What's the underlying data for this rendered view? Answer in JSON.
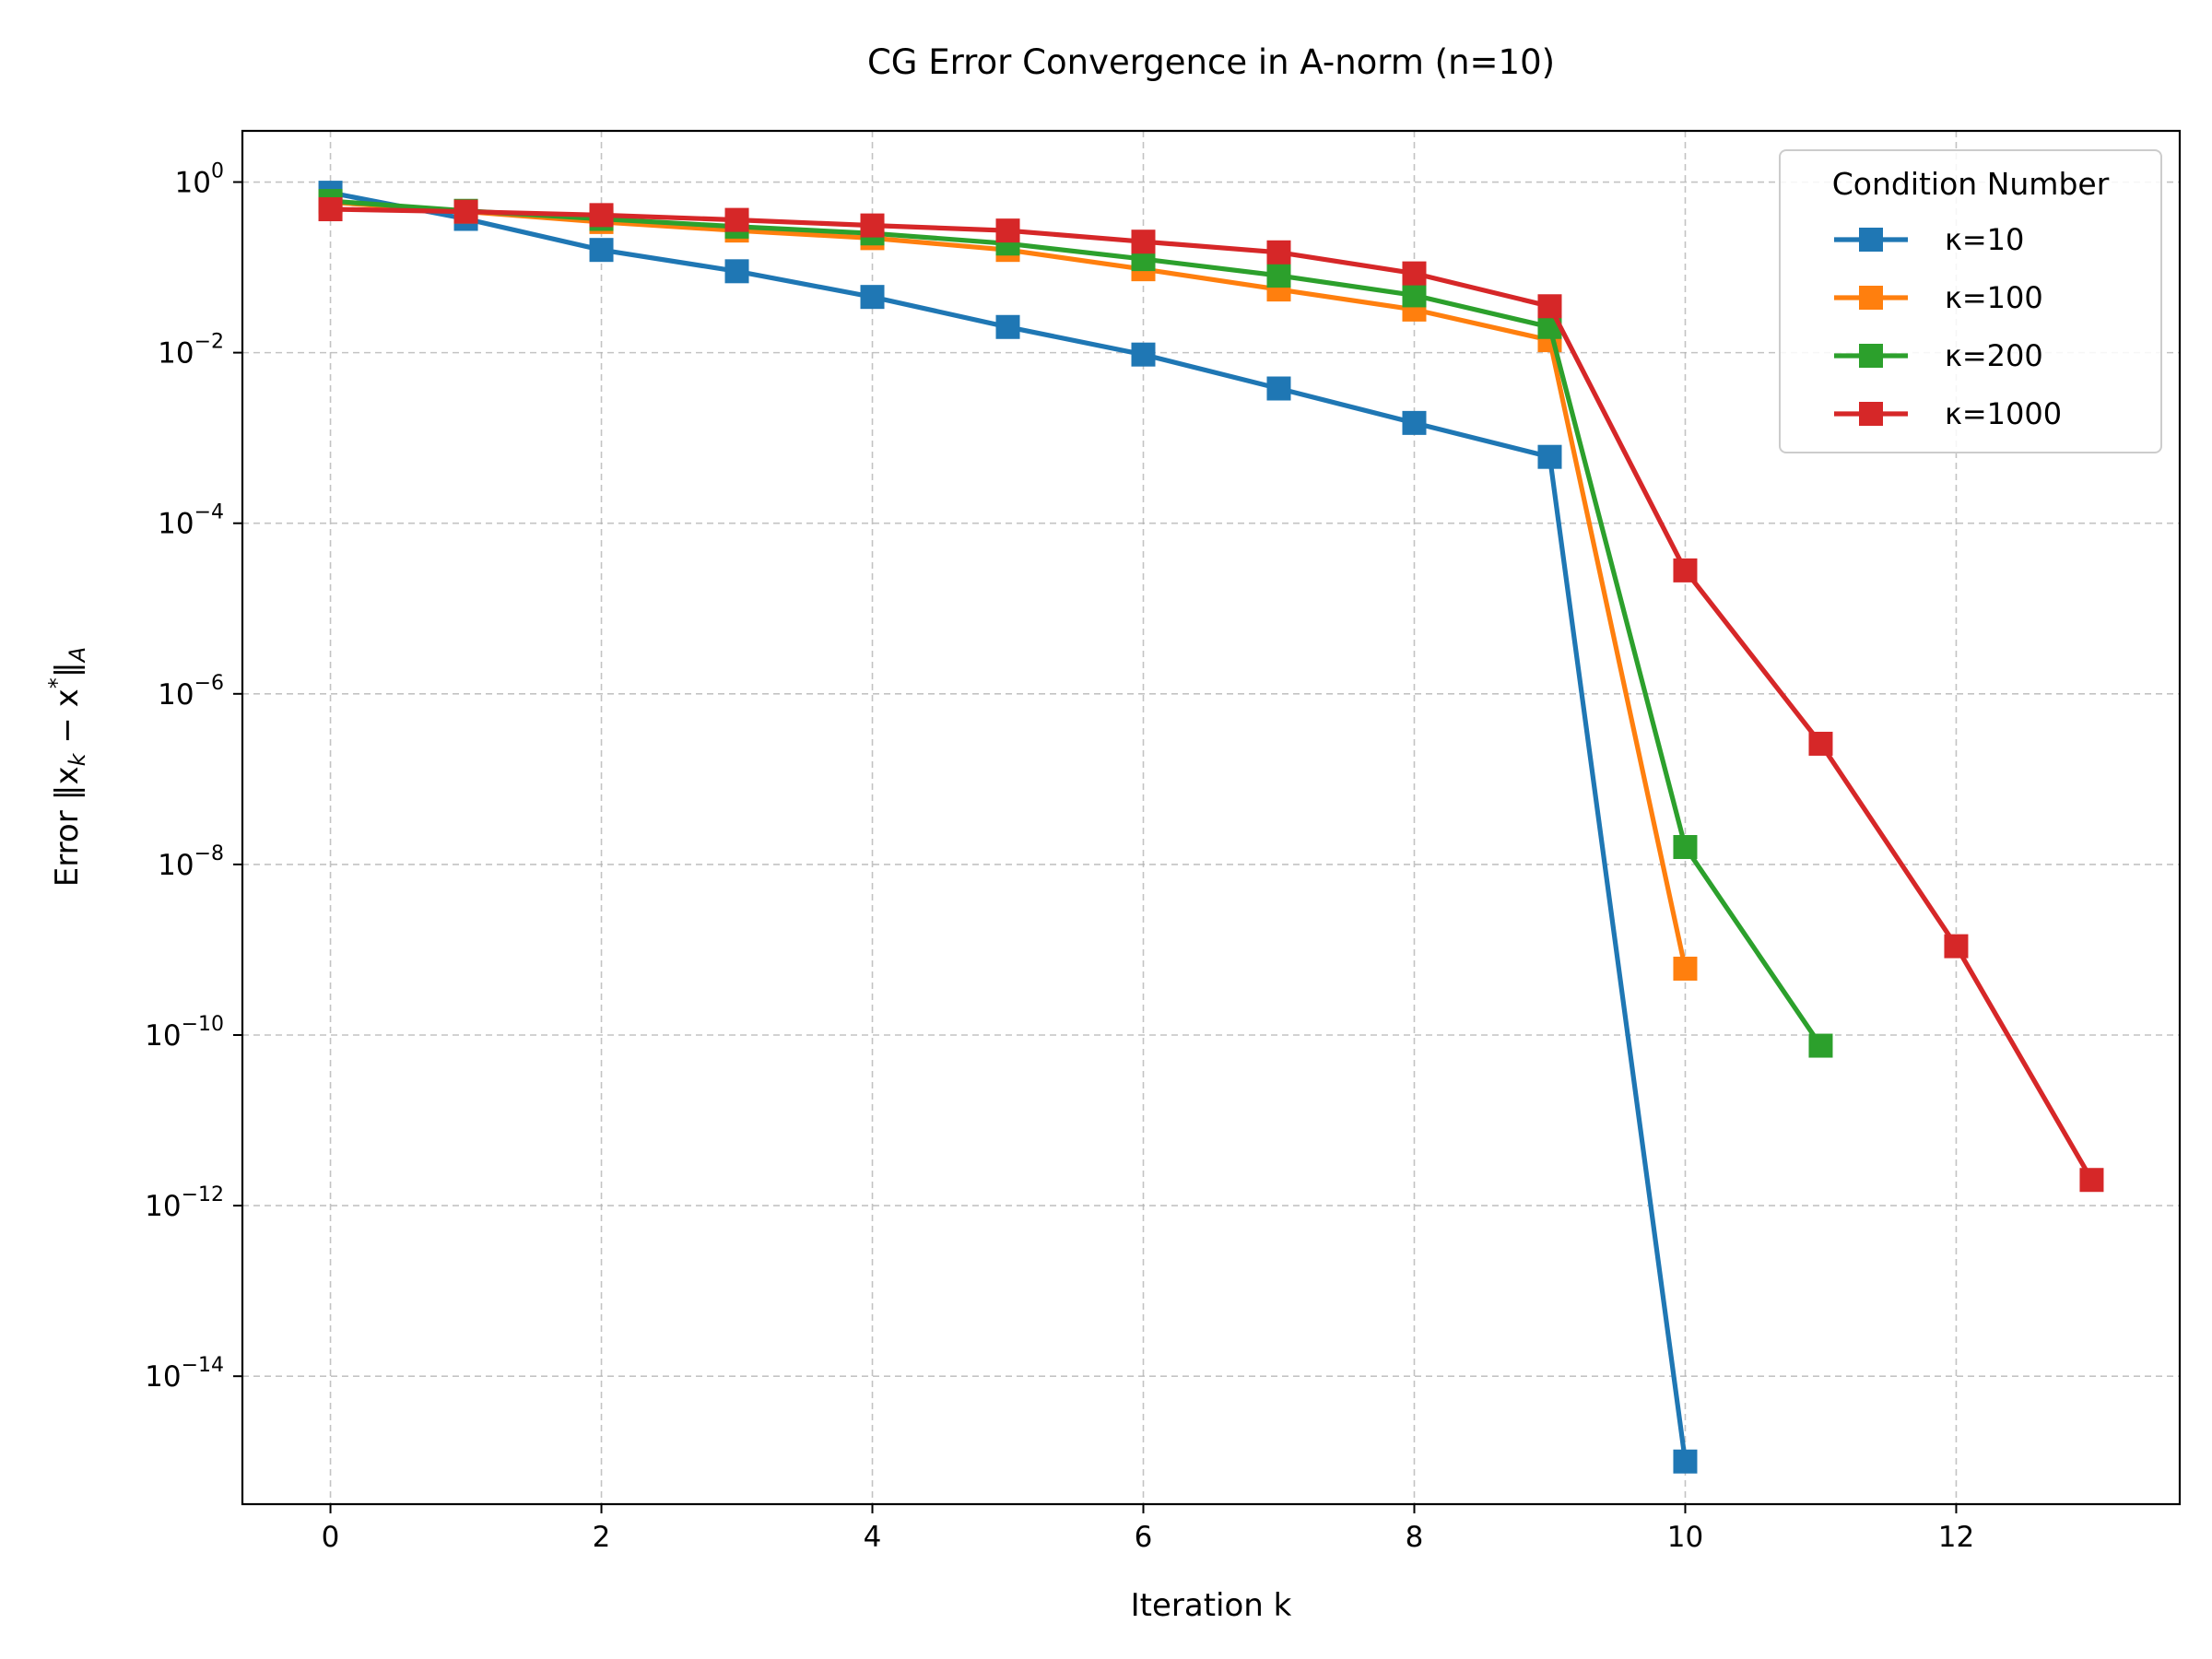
{
  "chart_data": {
    "type": "line",
    "title": "CG Error Convergence in A-norm (n=10)",
    "xlabel": "Iteration k",
    "ylabel_prefix": "Error ‖x",
    "ylabel_sub_k": "k",
    "ylabel_minus": " − x",
    "ylabel_star": "*",
    "ylabel_close": "‖",
    "ylabel_sub_A": "A",
    "y_scale": "log",
    "xlim": [
      -0.65,
      13.65
    ],
    "ylim_exp": [
      -15.5,
      0.6
    ],
    "grid": true,
    "legend_title": "Condition Number",
    "legend_position": "top-right",
    "x_ticks": [
      {
        "value": 0,
        "label": "0"
      },
      {
        "value": 2,
        "label": "2"
      },
      {
        "value": 4,
        "label": "4"
      },
      {
        "value": 6,
        "label": "6"
      },
      {
        "value": 8,
        "label": "8"
      },
      {
        "value": 10,
        "label": "10"
      },
      {
        "value": 12,
        "label": "12"
      }
    ],
    "y_ticks": [
      {
        "exp": 0,
        "base": "10",
        "sup": "0"
      },
      {
        "exp": -2,
        "base": "10",
        "sup": "−2"
      },
      {
        "exp": -4,
        "base": "10",
        "sup": "−4"
      },
      {
        "exp": -6,
        "base": "10",
        "sup": "−6"
      },
      {
        "exp": -8,
        "base": "10",
        "sup": "−8"
      },
      {
        "exp": -10,
        "base": "10",
        "sup": "−10"
      },
      {
        "exp": -12,
        "base": "10",
        "sup": "−12"
      },
      {
        "exp": -14,
        "base": "10",
        "sup": "−14"
      }
    ],
    "series": [
      {
        "name": "κ=10",
        "color": "#1f77b4",
        "x": [
          0,
          1,
          2,
          3,
          4,
          5,
          6,
          7,
          8,
          9,
          10
        ],
        "y": [
          0.75,
          0.37,
          0.16,
          0.09,
          0.045,
          0.02,
          0.0095,
          0.0038,
          0.0015,
          0.0006,
          1e-15
        ]
      },
      {
        "name": "κ=100",
        "color": "#ff7f0e",
        "x": [
          0,
          1,
          2,
          3,
          4,
          5,
          6,
          7,
          8,
          9,
          10
        ],
        "y": [
          0.58,
          0.45,
          0.34,
          0.27,
          0.22,
          0.16,
          0.095,
          0.055,
          0.032,
          0.014,
          6e-10
        ]
      },
      {
        "name": "κ=200",
        "color": "#2ca02c",
        "x": [
          0,
          1,
          2,
          3,
          4,
          5,
          6,
          7,
          8,
          9,
          10,
          11
        ],
        "y": [
          0.6,
          0.46,
          0.37,
          0.3,
          0.25,
          0.19,
          0.125,
          0.08,
          0.047,
          0.02,
          1.6e-08,
          7.5e-11
        ]
      },
      {
        "name": "κ=1000",
        "color": "#d62728",
        "x": [
          0,
          1,
          2,
          3,
          4,
          5,
          6,
          7,
          8,
          9,
          10,
          11,
          12,
          13
        ],
        "y": [
          0.48,
          0.45,
          0.41,
          0.36,
          0.31,
          0.27,
          0.2,
          0.15,
          0.085,
          0.035,
          2.8e-05,
          2.6e-07,
          1.1e-09,
          2e-12
        ]
      }
    ]
  }
}
